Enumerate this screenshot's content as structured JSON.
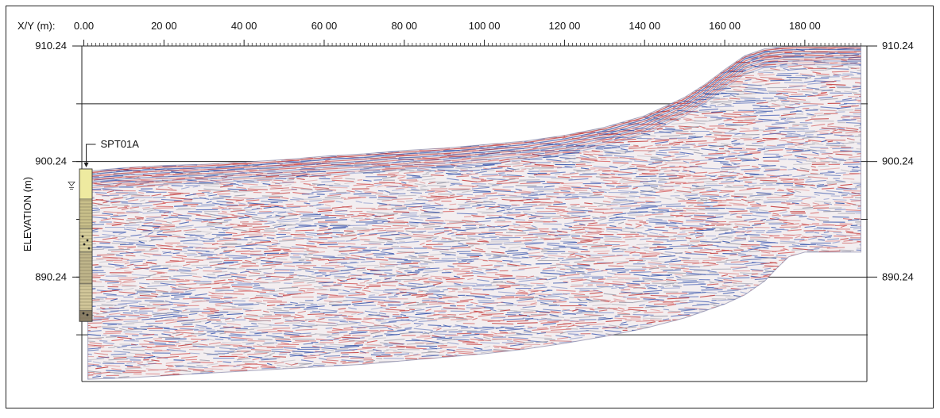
{
  "chart_data": {
    "type": "area",
    "title": "",
    "xlabel": "X/Y (m):",
    "ylabel": "ELEVATION (m)",
    "x_ticks": [
      "0.00",
      "20 00",
      "40 00",
      "60 00",
      "80 00",
      "100 00",
      "120 00",
      "140 00",
      "160 00",
      "180 00"
    ],
    "x_tick_values": [
      0,
      20,
      40,
      60,
      80,
      100,
      120,
      140,
      160,
      180
    ],
    "y_ticks": [
      "910.24",
      "900.24",
      "890.24"
    ],
    "y_tick_values": [
      910.24,
      900.24,
      890.24
    ],
    "xlim": [
      -0.5,
      195.5
    ],
    "ylim": [
      881.2,
      910.24
    ],
    "grid": true,
    "series": [
      {
        "x": [
          1,
          10,
          20,
          30,
          40,
          50,
          60,
          70,
          80,
          90,
          100,
          110,
          120,
          130,
          140,
          150,
          155,
          160,
          165,
          170,
          175,
          180,
          185,
          194
        ],
        "values": [
          899.4,
          899.7,
          899.9,
          900.0,
          900.2,
          900.4,
          900.7,
          900.9,
          901.2,
          901.4,
          901.7,
          902.0,
          902.5,
          903.2,
          904.2,
          905.8,
          906.9,
          908.2,
          909.4,
          910.0,
          910.2,
          910.24,
          910.24,
          910.2
        ]
      },
      {
        "x": [
          1,
          10,
          20,
          30,
          40,
          50,
          60,
          70,
          80,
          90,
          100,
          110,
          120,
          130,
          140,
          150,
          160,
          165,
          170,
          173,
          176,
          180,
          185,
          194
        ],
        "values": [
          881.4,
          881.5,
          881.7,
          881.9,
          882.1,
          882.3,
          882.5,
          882.7,
          883.0,
          883.3,
          883.6,
          884.0,
          884.5,
          885.1,
          885.8,
          886.7,
          887.9,
          888.7,
          889.9,
          891.0,
          892.0,
          892.4,
          892.4,
          892.4
        ]
      }
    ],
    "annotations": [
      {
        "text": "SPT01A",
        "x": 0,
        "y": 901.0
      }
    ],
    "borehole": {
      "x": 0,
      "top": 899.6,
      "bottom": 886.4,
      "water_table": 898.2
    }
  }
}
